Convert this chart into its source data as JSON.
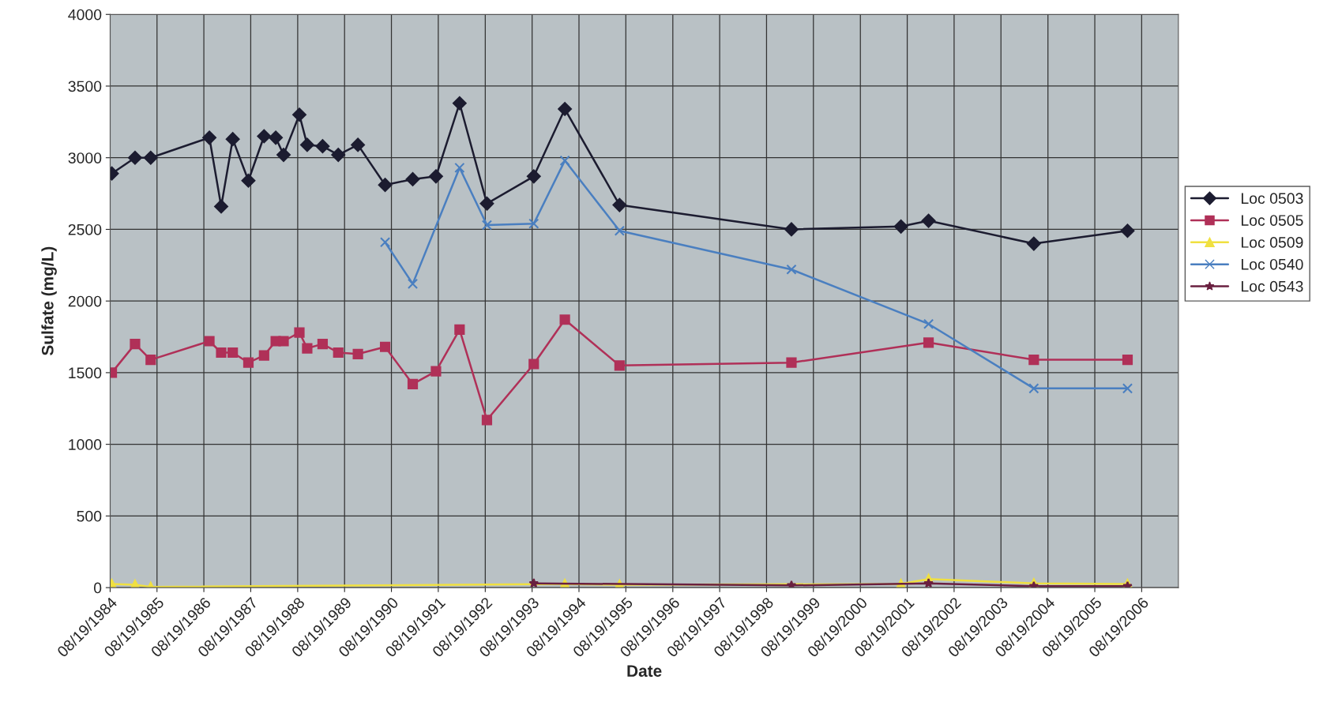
{
  "chart_data": {
    "type": "line",
    "xlabel": "Date",
    "ylabel": "Sulfate (mg/L)",
    "xlim": [
      "1984-08-19",
      "2007-06-01"
    ],
    "ylim": [
      0,
      4000
    ],
    "yticks": [
      0,
      500,
      1000,
      1500,
      2000,
      2500,
      3000,
      3500,
      4000
    ],
    "xticks": [
      {
        "value": "1984-08-19",
        "label": "08/19/1984"
      },
      {
        "value": "1985-08-19",
        "label": "08/19/1985"
      },
      {
        "value": "1986-08-19",
        "label": "08/19/1986"
      },
      {
        "value": "1987-08-19",
        "label": "08/19/1987"
      },
      {
        "value": "1988-08-19",
        "label": "08/19/1988"
      },
      {
        "value": "1989-08-19",
        "label": "08/19/1989"
      },
      {
        "value": "1990-08-19",
        "label": "08/19/1990"
      },
      {
        "value": "1991-08-19",
        "label": "08/19/1991"
      },
      {
        "value": "1992-08-19",
        "label": "08/19/1992"
      },
      {
        "value": "1993-08-19",
        "label": "08/19/1993"
      },
      {
        "value": "1994-08-19",
        "label": "08/19/1994"
      },
      {
        "value": "1995-08-19",
        "label": "08/19/1995"
      },
      {
        "value": "1996-08-19",
        "label": "08/19/1996"
      },
      {
        "value": "1997-08-19",
        "label": "08/19/1997"
      },
      {
        "value": "1998-08-19",
        "label": "08/19/1998"
      },
      {
        "value": "1999-08-19",
        "label": "08/19/1999"
      },
      {
        "value": "2000-08-19",
        "label": "08/19/2000"
      },
      {
        "value": "2001-08-19",
        "label": "08/19/2001"
      },
      {
        "value": "2002-08-19",
        "label": "08/19/2002"
      },
      {
        "value": "2003-08-19",
        "label": "08/19/2003"
      },
      {
        "value": "2004-08-19",
        "label": "08/19/2004"
      },
      {
        "value": "2005-08-19",
        "label": "08/19/2005"
      },
      {
        "value": "2006-08-19",
        "label": "08/19/2006"
      }
    ],
    "grid": true,
    "legend": "right",
    "line_style": "solid",
    "series": [
      {
        "name": "Loc 0503",
        "color": "#1c1c30",
        "marker": "diamond",
        "x": [
          "1984-09",
          "1985-03",
          "1985-07",
          "1986-10",
          "1987-01",
          "1987-04",
          "1987-08",
          "1987-12",
          "1988-03",
          "1988-05",
          "1988-09",
          "1988-11",
          "1989-03",
          "1989-07",
          "1989-12",
          "1990-07",
          "1991-02",
          "1991-08",
          "1992-02",
          "1992-09",
          "1993-09",
          "1994-05",
          "1995-07",
          "1999-03",
          "2001-07",
          "2002-02",
          "2004-05",
          "2006-05"
        ],
        "values": [
          2890,
          3000,
          3000,
          3140,
          2660,
          3130,
          2840,
          3150,
          3140,
          3020,
          3300,
          3090,
          3080,
          3020,
          3090,
          2810,
          2850,
          2870,
          3380,
          2680,
          2870,
          3340,
          2670,
          2500,
          2520,
          2560,
          2400,
          2490
        ]
      },
      {
        "name": "Loc 0505",
        "color": "#b03058",
        "marker": "square",
        "x": [
          "1984-09",
          "1985-03",
          "1985-07",
          "1986-10",
          "1987-01",
          "1987-04",
          "1987-08",
          "1987-12",
          "1988-03",
          "1988-05",
          "1988-09",
          "1988-11",
          "1989-03",
          "1989-07",
          "1989-12",
          "1990-07",
          "1991-02",
          "1991-08",
          "1992-02",
          "1992-09",
          "1993-09",
          "1994-05",
          "1995-07",
          "1999-03",
          "2002-02",
          "2004-05",
          "2006-05"
        ],
        "values": [
          1500,
          1700,
          1590,
          1720,
          1640,
          1640,
          1570,
          1620,
          1720,
          1720,
          1780,
          1670,
          1700,
          1640,
          1630,
          1680,
          1420,
          1510,
          1800,
          1170,
          1560,
          1870,
          1550,
          1570,
          1710,
          1590,
          1590
        ]
      },
      {
        "name": "Loc 0509",
        "color": "#f0e040",
        "marker": "triangle",
        "x": [
          "1984-09",
          "1985-03",
          "1985-07",
          "1994-05",
          "1995-07",
          "2001-07",
          "2002-02",
          "2004-05",
          "2006-05"
        ],
        "values": [
          25,
          20,
          5,
          25,
          20,
          25,
          60,
          30,
          25
        ]
      },
      {
        "name": "Loc 0540",
        "color": "#4a7fc0",
        "marker": "cross",
        "x": [
          "1990-07",
          "1991-02",
          "1992-02",
          "1992-09",
          "1993-09",
          "1994-05",
          "1995-07",
          "1999-03",
          "2002-02",
          "2004-05",
          "2006-05"
        ],
        "values": [
          2410,
          2120,
          2930,
          2530,
          2540,
          2980,
          2490,
          2220,
          1840,
          1390,
          1390
        ]
      },
      {
        "name": "Loc 0543",
        "color": "#6a2040",
        "marker": "star",
        "x": [
          "1993-09",
          "1999-03",
          "2002-02",
          "2004-05",
          "2006-05"
        ],
        "values": [
          30,
          15,
          30,
          10,
          10
        ]
      }
    ]
  }
}
